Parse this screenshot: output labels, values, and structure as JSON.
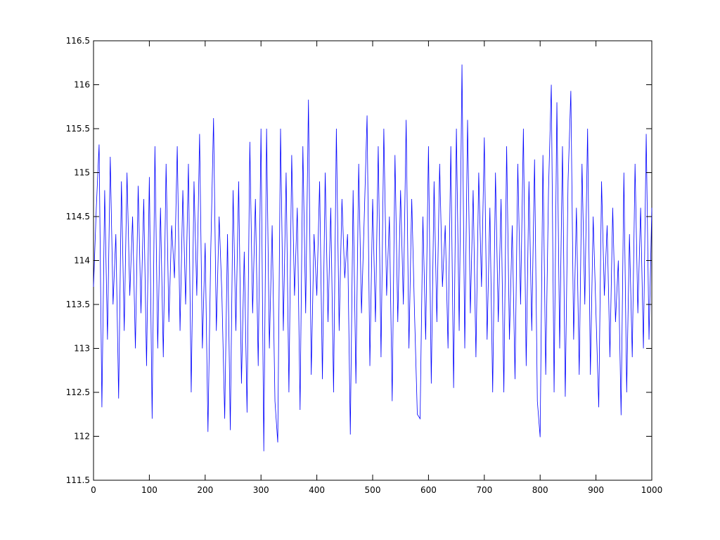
{
  "chart_data": {
    "type": "line",
    "color": "#0000ff",
    "x": [
      0,
      5,
      10,
      15,
      20,
      25,
      30,
      35,
      40,
      45,
      50,
      55,
      60,
      65,
      70,
      75,
      80,
      85,
      90,
      95,
      100,
      105,
      110,
      115,
      120,
      125,
      130,
      135,
      140,
      145,
      150,
      155,
      160,
      165,
      170,
      175,
      180,
      185,
      190,
      195,
      200,
      205,
      210,
      215,
      220,
      225,
      230,
      235,
      240,
      245,
      250,
      255,
      260,
      265,
      270,
      275,
      280,
      285,
      290,
      295,
      300,
      305,
      310,
      315,
      320,
      325,
      330,
      335,
      340,
      345,
      350,
      355,
      360,
      365,
      370,
      375,
      380,
      385,
      390,
      395,
      400,
      405,
      410,
      415,
      420,
      425,
      430,
      435,
      440,
      445,
      450,
      455,
      460,
      465,
      470,
      475,
      480,
      485,
      490,
      495,
      500,
      505,
      510,
      515,
      520,
      525,
      530,
      535,
      540,
      545,
      550,
      555,
      560,
      565,
      570,
      575,
      580,
      585,
      590,
      595,
      600,
      605,
      610,
      615,
      620,
      625,
      630,
      635,
      640,
      645,
      650,
      655,
      660,
      665,
      670,
      675,
      680,
      685,
      690,
      695,
      700,
      705,
      710,
      715,
      720,
      725,
      730,
      735,
      740,
      745,
      750,
      755,
      760,
      765,
      770,
      775,
      780,
      785,
      790,
      795,
      800,
      805,
      810,
      815,
      820,
      825,
      830,
      835,
      840,
      845,
      850,
      855,
      860,
      865,
      870,
      875,
      880,
      885,
      890,
      895,
      900,
      905,
      910,
      915,
      920,
      925,
      930,
      935,
      940,
      945,
      950,
      955,
      960,
      965,
      970,
      975,
      980,
      985,
      990,
      995,
      1000
    ],
    "values": [
      113.7,
      114.6,
      115.32,
      112.33,
      114.8,
      113.1,
      115.18,
      113.5,
      114.3,
      112.43,
      114.9,
      113.2,
      115.0,
      113.6,
      114.5,
      113.0,
      114.85,
      113.4,
      114.7,
      112.8,
      114.95,
      112.2,
      115.3,
      113.0,
      114.6,
      112.9,
      115.1,
      113.3,
      114.4,
      113.8,
      115.3,
      113.2,
      114.8,
      113.5,
      115.1,
      112.5,
      114.9,
      113.6,
      115.44,
      113.0,
      114.2,
      112.05,
      114.1,
      115.62,
      113.2,
      114.5,
      113.6,
      112.2,
      114.3,
      112.07,
      114.8,
      113.2,
      114.9,
      112.6,
      114.1,
      112.27,
      115.35,
      113.4,
      114.7,
      112.8,
      115.5,
      111.83,
      115.5,
      113.0,
      114.4,
      112.4,
      111.93,
      115.5,
      113.2,
      115.0,
      112.5,
      115.2,
      113.6,
      114.6,
      112.3,
      115.3,
      113.4,
      115.83,
      112.7,
      114.3,
      113.6,
      114.9,
      112.65,
      115.0,
      113.3,
      114.6,
      112.5,
      115.5,
      113.2,
      114.7,
      113.8,
      114.3,
      112.02,
      114.8,
      112.6,
      115.1,
      113.4,
      114.5,
      115.65,
      112.8,
      114.7,
      113.3,
      115.3,
      112.9,
      115.5,
      113.6,
      114.5,
      112.4,
      115.2,
      113.3,
      114.8,
      113.5,
      115.6,
      113.0,
      114.7,
      113.4,
      112.25,
      112.2,
      114.5,
      113.1,
      115.3,
      112.6,
      114.9,
      113.3,
      115.1,
      113.7,
      114.4,
      113.0,
      115.3,
      112.55,
      115.5,
      113.2,
      116.23,
      113.0,
      115.6,
      113.4,
      114.8,
      112.9,
      115.0,
      113.7,
      115.4,
      113.1,
      114.6,
      112.5,
      115.0,
      113.3,
      114.7,
      112.5,
      115.3,
      113.1,
      114.4,
      112.65,
      115.1,
      113.5,
      115.5,
      112.8,
      114.9,
      113.2,
      115.15,
      112.4,
      111.99,
      115.2,
      112.7,
      114.8,
      116.0,
      112.5,
      115.8,
      113.0,
      115.3,
      112.45,
      114.9,
      115.93,
      113.1,
      114.6,
      112.7,
      115.1,
      113.5,
      115.5,
      112.7,
      114.5,
      113.4,
      112.33,
      114.9,
      113.6,
      114.4,
      112.9,
      114.6,
      113.3,
      114.0,
      112.24,
      115.0,
      112.5,
      114.3,
      112.9,
      115.1,
      113.4,
      114.6,
      113.0,
      115.44,
      113.1,
      114.6
    ],
    "xlim": [
      0,
      1000
    ],
    "xticks": [
      0,
      100,
      200,
      300,
      400,
      500,
      600,
      700,
      800,
      900,
      1000
    ],
    "ylim": [
      111.5,
      116.5
    ],
    "yticks": [
      111.5,
      112,
      112.5,
      113,
      113.5,
      114,
      114.5,
      115,
      115.5,
      116,
      116.5
    ]
  }
}
